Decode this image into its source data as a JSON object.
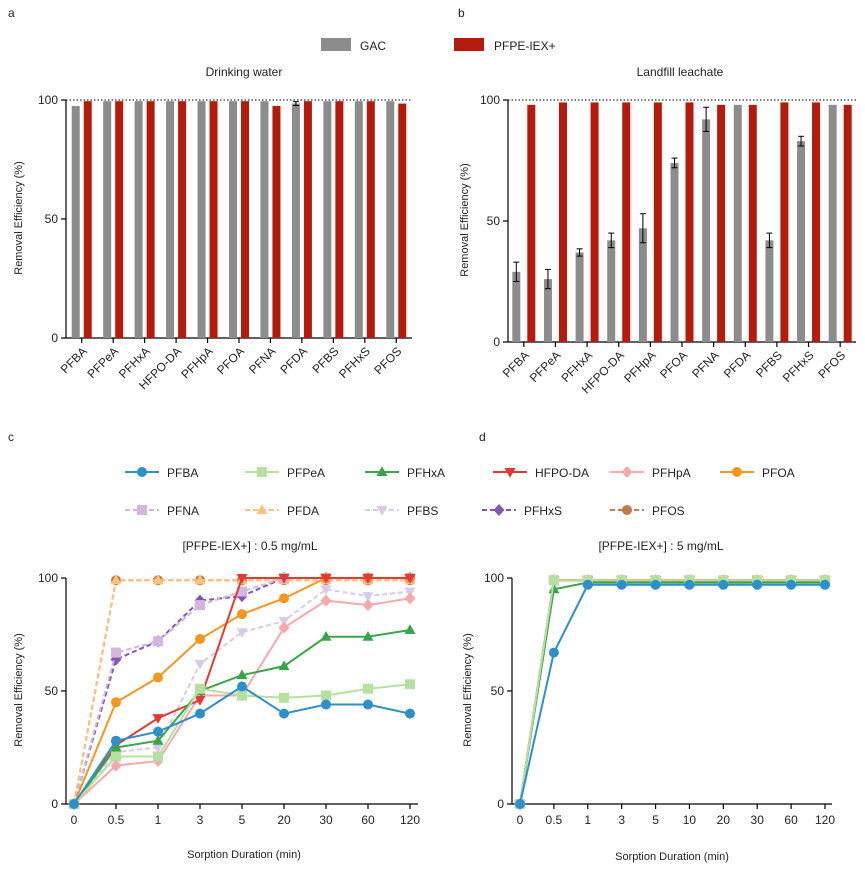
{
  "panel_labels": [
    "a",
    "b",
    "c",
    "d"
  ],
  "colors": {
    "gac": "#8c8c8c",
    "iex": "#b31b0c",
    "axis": "#000000",
    "ref_line": "#000000"
  },
  "top_legend": [
    "GAC",
    "PFPE-IEX+"
  ],
  "bottom_legend": [
    {
      "name": "PFBA",
      "color": "#2f8fc8",
      "marker": "circle",
      "dashed": false
    },
    {
      "name": "PFPeA",
      "color": "#b6e0a0",
      "marker": "square",
      "dashed": false
    },
    {
      "name": "PFHxA",
      "color": "#3aa548",
      "marker": "triangle-up",
      "dashed": false
    },
    {
      "name": "HFPO-DA",
      "color": "#e43a35",
      "marker": "triangle-down",
      "dashed": false
    },
    {
      "name": "PFHpA",
      "color": "#f5a9a9",
      "marker": "diamond",
      "dashed": false
    },
    {
      "name": "PFOA",
      "color": "#f5961f",
      "marker": "circle",
      "dashed": false
    },
    {
      "name": "PFNA",
      "color": "#d3b5dd",
      "marker": "square",
      "dashed": true
    },
    {
      "name": "PFDA",
      "color": "#f7c47e",
      "marker": "triangle-up",
      "dashed": true
    },
    {
      "name": "PFBS",
      "color": "#d8cbe8",
      "marker": "triangle-down",
      "dashed": true
    },
    {
      "name": "PFHxS",
      "color": "#8455b3",
      "marker": "diamond",
      "dashed": true
    },
    {
      "name": "PFOS",
      "color": "#c4794a",
      "marker": "circle",
      "dashed": true
    }
  ],
  "chart_data": [
    {
      "id": "a",
      "type": "bar",
      "title": "Drinking water",
      "ylabel": "Removal Efficiency (%)",
      "ylim": [
        0,
        100
      ],
      "yticks": [
        0,
        50,
        100
      ],
      "reference_line": 100,
      "categories": [
        "PFBA",
        "PFPeA",
        "PFHxA",
        "HFPO-DA",
        "PFHpA",
        "PFOA",
        "PFNA",
        "PFDA",
        "PFBS",
        "PFHxS",
        "PFOS"
      ],
      "series": [
        {
          "name": "GAC",
          "values": [
            97.5,
            99.5,
            99.5,
            99.5,
            99.5,
            99.5,
            99.5,
            98.5,
            99.5,
            99.5,
            99.5
          ],
          "errors": [
            0.5,
            0.3,
            0.3,
            0.3,
            0.3,
            0.3,
            0.3,
            0.8,
            0.3,
            0.3,
            0.3
          ]
        },
        {
          "name": "PFPE-IEX+",
          "values": [
            99.5,
            99.5,
            99.5,
            99.5,
            99.5,
            99.5,
            97.5,
            99.5,
            99.5,
            99.5,
            98.5
          ],
          "errors": [
            0.3,
            0.3,
            0.3,
            0.3,
            0.3,
            0.3,
            0.5,
            0.3,
            0.3,
            0.3,
            0.5
          ]
        }
      ]
    },
    {
      "id": "b",
      "type": "bar",
      "title": "Landfill leachate",
      "ylabel": "Removal Efficiency (%)",
      "ylim": [
        0,
        100
      ],
      "yticks": [
        0,
        50,
        100
      ],
      "reference_line": 100,
      "categories": [
        "PFBA",
        "PFPeA",
        "PFHxA",
        "HFPO-DA",
        "PFHpA",
        "PFOA",
        "PFNA",
        "PFDA",
        "PFBS",
        "PFHxS",
        "PFOS"
      ],
      "series": [
        {
          "name": "GAC",
          "values": [
            29,
            26,
            37,
            42,
            47,
            74,
            92,
            98,
            42,
            83,
            98
          ],
          "errors": [
            4,
            4,
            1.5,
            3,
            6,
            2,
            5,
            0,
            3,
            2,
            0
          ]
        },
        {
          "name": "PFPE-IEX+",
          "values": [
            98,
            99,
            99,
            99,
            99,
            99,
            98,
            98,
            99,
            99,
            98
          ],
          "errors": [
            0,
            0,
            0,
            0,
            0,
            0,
            0,
            0,
            0,
            0,
            0
          ]
        }
      ]
    },
    {
      "id": "c",
      "type": "line",
      "title": "[PFPE-IEX+] :  0.5 mg/mL",
      "xlabel": "Sorption Duration (min)",
      "ylabel": "Removal Efficiency (%)",
      "ylim": [
        0,
        100
      ],
      "yticks": [
        0,
        50,
        100
      ],
      "categories": [
        "0",
        "0.5",
        "1",
        "3",
        "5",
        "20",
        "30",
        "60",
        "120"
      ],
      "series": [
        {
          "name": "PFBA",
          "values": [
            0,
            28,
            32,
            40,
            52,
            40,
            44,
            44,
            40
          ]
        },
        {
          "name": "PFPeA",
          "values": [
            0,
            21,
            21,
            51,
            48,
            47,
            48,
            51,
            53
          ]
        },
        {
          "name": "PFHxA",
          "values": [
            0,
            25,
            28,
            50,
            57,
            61,
            74,
            74,
            77
          ]
        },
        {
          "name": "HFPO-DA",
          "values": [
            0,
            26,
            38,
            46,
            100,
            100,
            100,
            100,
            100
          ]
        },
        {
          "name": "PFHpA",
          "values": [
            0,
            17,
            19,
            48,
            48,
            78,
            90,
            88,
            91
          ]
        },
        {
          "name": "PFOA",
          "values": [
            0,
            45,
            56,
            73,
            84,
            91,
            100,
            100,
            100
          ]
        },
        {
          "name": "PFNA",
          "values": [
            0,
            67,
            72,
            88,
            94,
            100,
            100,
            100,
            100
          ]
        },
        {
          "name": "PFDA",
          "values": [
            0,
            99,
            99,
            99,
            99,
            99,
            99,
            99,
            99
          ]
        },
        {
          "name": "PFBS",
          "values": [
            0,
            23,
            25,
            62,
            76,
            81,
            95,
            92,
            94
          ]
        },
        {
          "name": "PFHxS",
          "values": [
            0,
            64,
            72,
            90,
            92,
            100,
            100,
            100,
            100
          ]
        },
        {
          "name": "PFOS",
          "values": [
            0,
            99,
            99,
            99,
            99,
            99,
            99,
            99,
            99
          ]
        }
      ]
    },
    {
      "id": "d",
      "type": "line",
      "title": "[PFPE-IEX+] :  5 mg/mL",
      "xlabel": "Sorption Duration (min)",
      "ylabel": "Removal Efficiency (%)",
      "ylim": [
        0,
        100
      ],
      "yticks": [
        0,
        50,
        100
      ],
      "categories": [
        "0",
        "0.5",
        "1",
        "3",
        "5",
        "10",
        "20",
        "30",
        "60",
        "120"
      ],
      "series": [
        {
          "name": "PFBA",
          "values": [
            0,
            67,
            97,
            97,
            97,
            97,
            97,
            97,
            97,
            97
          ]
        },
        {
          "name": "PFPeA",
          "values": [
            0,
            99,
            99,
            99,
            99,
            99,
            99,
            99,
            99,
            99
          ]
        },
        {
          "name": "PFHxA",
          "values": [
            0,
            95,
            98,
            98,
            98,
            98,
            98,
            98,
            98,
            98
          ]
        },
        {
          "name": "HFPO-DA",
          "values": [
            0,
            99,
            99,
            99,
            99,
            99,
            99,
            99,
            99,
            99
          ]
        },
        {
          "name": "PFHpA",
          "values": [
            0,
            99,
            99,
            99,
            99,
            99,
            99,
            99,
            99,
            99
          ]
        },
        {
          "name": "PFOA",
          "values": [
            0,
            99,
            99,
            99,
            99,
            99,
            99,
            99,
            99,
            99
          ]
        },
        {
          "name": "PFNA",
          "values": [
            0,
            99,
            99,
            99,
            99,
            99,
            99,
            99,
            99,
            99
          ]
        },
        {
          "name": "PFDA",
          "values": [
            0,
            99,
            99,
            99,
            99,
            99,
            99,
            99,
            99,
            99
          ]
        },
        {
          "name": "PFBS",
          "values": [
            0,
            99,
            99,
            99,
            99,
            99,
            99,
            99,
            99,
            99
          ]
        },
        {
          "name": "PFHxS",
          "values": [
            0,
            99,
            99,
            99,
            99,
            99,
            99,
            99,
            99,
            99
          ]
        },
        {
          "name": "PFOS",
          "values": [
            0,
            99,
            99,
            99,
            99,
            99,
            99,
            99,
            99,
            99
          ]
        }
      ]
    }
  ]
}
